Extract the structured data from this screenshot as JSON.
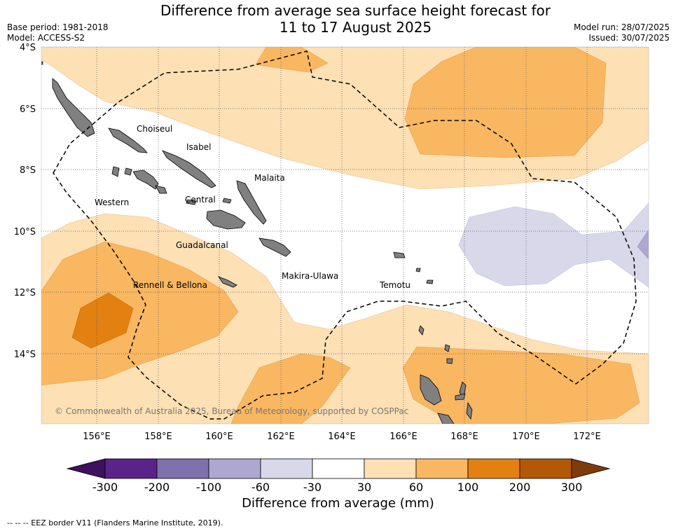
{
  "title_line1": "Difference from average sea surface height forecast for",
  "title_line2": "11 to 17 August 2025",
  "meta_left": {
    "base_period": "Base period: 1981-2018",
    "model": "Model: ACCESS-S2"
  },
  "meta_right": {
    "model_run": "Model run: 28/07/2025",
    "issued": "Issued: 30/07/2025"
  },
  "lat_labels": [
    "4°S",
    "6°S",
    "8°S",
    "10°S",
    "12°S",
    "14°S"
  ],
  "lon_labels": [
    "156°E",
    "158°E",
    "160°E",
    "162°E",
    "164°E",
    "166°E",
    "168°E",
    "170°E",
    "172°E"
  ],
  "places": [
    "Choiseul",
    "Isabel",
    "Malaita",
    "Western",
    "Central",
    "Guadalcanal",
    "Makira-Ulawa",
    "Rennell & Bellona",
    "Temotu"
  ],
  "copyright": "© Commonwealth of Australia 2025, Bureau of Meteorology, supported by COSPPac",
  "colorbar": {
    "ticks": [
      "-300",
      "-200",
      "-100",
      "-60",
      "-30",
      "30",
      "60",
      "100",
      "200",
      "300"
    ],
    "colors": [
      "#3d1060",
      "#5a2389",
      "#7f70ae",
      "#aea7d0",
      "#d8d8ea",
      "#ffffff",
      "#fde0b4",
      "#f9b762",
      "#e28012",
      "#b35806",
      "#7f3b08"
    ],
    "title": "Difference from average (mm)"
  },
  "footnote": "-- -- -- EEZ border V11 (Flanders Marine Institute, 2019)."
}
